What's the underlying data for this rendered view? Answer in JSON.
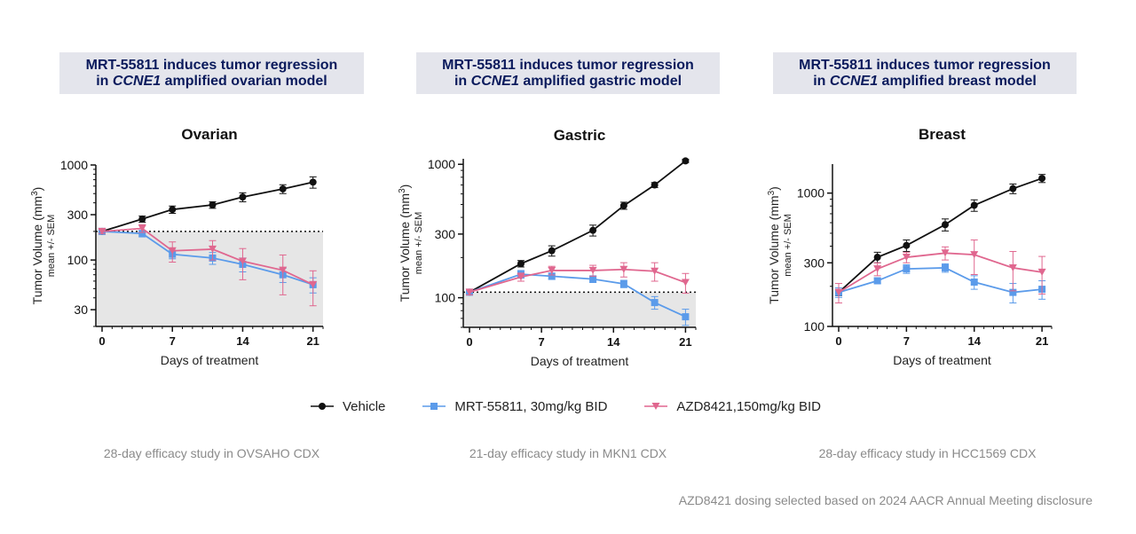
{
  "panels": [
    {
      "header_line1": "MRT-55811 induces tumor regression",
      "header_line2_italic": "CCNE1",
      "header_line2_rest": " amplified ovarian model",
      "footer": "28-day efficacy study in OVSAHO CDX"
    },
    {
      "header_line1": "MRT-55811 induces tumor regression",
      "header_line2_italic": "CCNE1",
      "header_line2_rest": " amplified gastric model",
      "footer": "21-day efficacy study in MKN1 CDX"
    },
    {
      "header_line1": "MRT-55811 induces tumor regression",
      "header_line2_italic": "CCNE1",
      "header_line2_rest": " amplified breast model",
      "footer": "28-day efficacy study in HCC1569 CDX"
    }
  ],
  "legend": [
    {
      "label": "Vehicle",
      "color": "#111111",
      "marker": "circle"
    },
    {
      "label": "MRT-55811, 30mg/kg BID",
      "color": "#5b9bea",
      "marker": "square"
    },
    {
      "label": "AZD8421,150mg/kg BID",
      "color": "#e0678f",
      "marker": "triangle-down"
    }
  ],
  "note": "AZD8421 dosing selected based on 2024 AACR Annual Meeting disclosure",
  "chart_data": [
    {
      "type": "line",
      "title": "Ovarian",
      "xlabel": "Days of treatment",
      "ylabel": "Tumor Volume (mm",
      "ylabel_sup": "3",
      "ylabel_close": ")",
      "ylabel_sub": "mean +/- SEM",
      "yscale": "log",
      "ylim": [
        20,
        1000
      ],
      "yticks": [
        30,
        100,
        300,
        1000
      ],
      "ytick_labels": [
        "30",
        "100",
        "300",
        "1000"
      ],
      "xlim": [
        0,
        22
      ],
      "xticks": [
        0,
        7,
        14,
        21
      ],
      "xtick_labels": [
        "0",
        "7",
        "14",
        "21"
      ],
      "baseline": 200,
      "series": [
        {
          "name": "Vehicle",
          "color": "#111111",
          "marker": "circle",
          "x": [
            0,
            4,
            7,
            11,
            14,
            18,
            21
          ],
          "y": [
            200,
            270,
            340,
            380,
            460,
            560,
            660
          ],
          "err": [
            10,
            20,
            30,
            30,
            50,
            60,
            90
          ]
        },
        {
          "name": "MRT-55811, 30mg/kg BID",
          "color": "#5b9bea",
          "marker": "square",
          "x": [
            0,
            4,
            7,
            11,
            14,
            18,
            21
          ],
          "y": [
            200,
            190,
            115,
            105,
            90,
            70,
            55
          ],
          "err": [
            10,
            15,
            12,
            15,
            15,
            12,
            10
          ]
        },
        {
          "name": "AZD8421,150mg/kg BID",
          "color": "#e0678f",
          "marker": "triangle-down",
          "x": [
            0,
            4,
            7,
            11,
            14,
            18,
            21
          ],
          "y": [
            200,
            215,
            125,
            130,
            97,
            78,
            55
          ],
          "err": [
            10,
            20,
            30,
            30,
            35,
            35,
            22
          ]
        }
      ]
    },
    {
      "type": "line",
      "title": "Gastric",
      "xlabel": "Days of treatment",
      "ylabel": "Tumor Volume (mm",
      "ylabel_sup": "3",
      "ylabel_close": ")",
      "ylabel_sub": "mean +/- SEM",
      "yscale": "log",
      "ylim": [
        60,
        1100
      ],
      "yticks": [
        100,
        300,
        1000
      ],
      "ytick_labels": [
        "100",
        "300",
        "1000"
      ],
      "xlim": [
        0,
        22
      ],
      "xticks": [
        0,
        7,
        14,
        21
      ],
      "xtick_labels": [
        "0",
        "7",
        "14",
        "21"
      ],
      "baseline": 110,
      "series": [
        {
          "name": "Vehicle",
          "color": "#111111",
          "marker": "circle",
          "x": [
            0,
            5,
            8,
            12,
            15,
            18,
            21
          ],
          "y": [
            110,
            180,
            225,
            320,
            490,
            700,
            1060
          ],
          "err": [
            5,
            10,
            20,
            30,
            30,
            30,
            30
          ]
        },
        {
          "name": "MRT-55811, 30mg/kg BID",
          "color": "#5b9bea",
          "marker": "square",
          "x": [
            0,
            5,
            8,
            12,
            15,
            18,
            21
          ],
          "y": [
            110,
            150,
            145,
            138,
            127,
            92,
            72
          ],
          "err": [
            5,
            10,
            8,
            8,
            8,
            10,
            10
          ]
        },
        {
          "name": "AZD8421,150mg/kg BID",
          "color": "#e0678f",
          "marker": "triangle-down",
          "x": [
            0,
            5,
            8,
            12,
            15,
            18,
            21
          ],
          "y": [
            110,
            143,
            160,
            160,
            163,
            158,
            130
          ],
          "err": [
            5,
            10,
            12,
            15,
            20,
            25,
            22
          ]
        }
      ]
    },
    {
      "type": "line",
      "title": "Breast",
      "xlabel": "Days of treatment",
      "ylabel": "Tumor Volume (mm",
      "ylabel_sup": "3",
      "ylabel_close": ")",
      "ylabel_sub": "mean +/- SEM",
      "yscale": "log",
      "ylim": [
        100,
        1650
      ],
      "yticks": [
        100,
        300,
        1000
      ],
      "ytick_labels": [
        "100",
        "300",
        "1000"
      ],
      "xlim": [
        0,
        22
      ],
      "xticks": [
        0,
        7,
        14,
        21
      ],
      "xtick_labels": [
        "0",
        "7",
        "14",
        "21"
      ],
      "series": [
        {
          "name": "Vehicle",
          "color": "#111111",
          "marker": "circle",
          "x": [
            0,
            4,
            7,
            11,
            14,
            18,
            21
          ],
          "y": [
            180,
            330,
            405,
            580,
            810,
            1080,
            1290
          ],
          "err": [
            10,
            30,
            40,
            60,
            80,
            90,
            90
          ]
        },
        {
          "name": "MRT-55811, 30mg/kg BID",
          "color": "#5b9bea",
          "marker": "square",
          "x": [
            0,
            4,
            7,
            11,
            14,
            18,
            21
          ],
          "y": [
            180,
            220,
            270,
            275,
            215,
            180,
            190
          ],
          "err": [
            15,
            10,
            20,
            20,
            25,
            30,
            30
          ]
        },
        {
          "name": "AZD8421,150mg/kg BID",
          "color": "#e0678f",
          "marker": "triangle-down",
          "x": [
            0,
            4,
            7,
            11,
            14,
            18,
            21
          ],
          "y": [
            180,
            270,
            330,
            355,
            345,
            275,
            255
          ],
          "err": [
            30,
            30,
            30,
            40,
            100,
            90,
            80
          ]
        }
      ]
    }
  ]
}
